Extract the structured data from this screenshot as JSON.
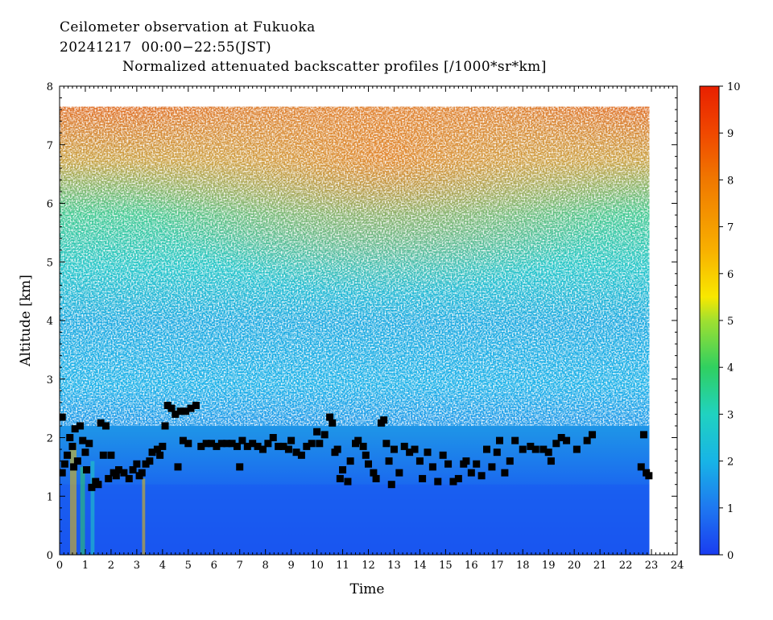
{
  "header": {
    "line1": "Ceilometer observation at Fukuoka",
    "line2": "20241217  00:00−22:55(JST)",
    "line3": "Normalized attenuated backscatter profiles [/1000*sr*km]"
  },
  "chart_data": {
    "type": "heatmap",
    "xlabel": "Time",
    "ylabel": "Altitude [km]",
    "xlim": [
      0,
      24
    ],
    "ylim": [
      0,
      8
    ],
    "x_ticks": [
      "0",
      "1",
      "2",
      "3",
      "4",
      "5",
      "6",
      "7",
      "8",
      "9",
      "10",
      "11",
      "12",
      "13",
      "14",
      "15",
      "16",
      "17",
      "18",
      "19",
      "20",
      "21",
      "22",
      "23",
      "24"
    ],
    "y_ticks": [
      "0",
      "1",
      "2",
      "3",
      "4",
      "5",
      "6",
      "7",
      "8"
    ],
    "data_time_range_hours": [
      0,
      22.92
    ],
    "data_max_altitude_km": 7.65,
    "colorbar": {
      "range": [
        0,
        10
      ],
      "ticks": [
        "0",
        "1",
        "2",
        "3",
        "4",
        "5",
        "6",
        "7",
        "8",
        "9",
        "10"
      ],
      "colors": [
        "#1a3cf0",
        "#1e78f0",
        "#18b4e6",
        "#20d2c0",
        "#30d060",
        "#a0e030",
        "#f8e800",
        "#f8b000",
        "#f07800",
        "#f04800",
        "#e82000"
      ]
    },
    "cloud_base_marks": {
      "marker": "black-square",
      "points": [
        [
          0.1,
          2.35
        ],
        [
          0.1,
          1.4
        ],
        [
          0.2,
          1.55
        ],
        [
          0.3,
          1.7
        ],
        [
          0.4,
          2.0
        ],
        [
          0.5,
          1.85
        ],
        [
          0.55,
          1.5
        ],
        [
          0.6,
          2.15
        ],
        [
          0.7,
          1.6
        ],
        [
          0.8,
          2.2
        ],
        [
          0.9,
          1.95
        ],
        [
          1.0,
          1.75
        ],
        [
          1.05,
          1.45
        ],
        [
          1.15,
          1.9
        ],
        [
          1.25,
          1.15
        ],
        [
          1.4,
          1.25
        ],
        [
          1.5,
          1.2
        ],
        [
          1.6,
          2.25
        ],
        [
          1.7,
          1.7
        ],
        [
          1.8,
          2.2
        ],
        [
          1.9,
          1.3
        ],
        [
          2.0,
          1.7
        ],
        [
          2.1,
          1.4
        ],
        [
          2.2,
          1.35
        ],
        [
          2.3,
          1.45
        ],
        [
          2.5,
          1.4
        ],
        [
          2.7,
          1.3
        ],
        [
          2.85,
          1.45
        ],
        [
          3.0,
          1.55
        ],
        [
          3.1,
          1.35
        ],
        [
          3.2,
          1.4
        ],
        [
          3.35,
          1.55
        ],
        [
          3.5,
          1.6
        ],
        [
          3.6,
          1.75
        ],
        [
          3.8,
          1.8
        ],
        [
          3.9,
          1.7
        ],
        [
          4.0,
          1.85
        ],
        [
          4.1,
          2.2
        ],
        [
          4.2,
          2.55
        ],
        [
          4.35,
          2.5
        ],
        [
          4.5,
          2.4
        ],
        [
          4.6,
          1.5
        ],
        [
          4.7,
          2.45
        ],
        [
          4.8,
          1.95
        ],
        [
          4.9,
          2.45
        ],
        [
          5.0,
          1.9
        ],
        [
          5.1,
          2.5
        ],
        [
          5.3,
          2.55
        ],
        [
          5.5,
          1.85
        ],
        [
          5.7,
          1.9
        ],
        [
          5.9,
          1.9
        ],
        [
          6.1,
          1.85
        ],
        [
          6.3,
          1.9
        ],
        [
          6.5,
          1.9
        ],
        [
          6.7,
          1.9
        ],
        [
          6.9,
          1.85
        ],
        [
          7.0,
          1.5
        ],
        [
          7.1,
          1.95
        ],
        [
          7.3,
          1.85
        ],
        [
          7.5,
          1.9
        ],
        [
          7.7,
          1.85
        ],
        [
          7.9,
          1.8
        ],
        [
          8.1,
          1.9
        ],
        [
          8.3,
          2.0
        ],
        [
          8.5,
          1.85
        ],
        [
          8.7,
          1.85
        ],
        [
          8.9,
          1.8
        ],
        [
          9.0,
          1.95
        ],
        [
          9.2,
          1.75
        ],
        [
          9.4,
          1.7
        ],
        [
          9.6,
          1.85
        ],
        [
          9.8,
          1.9
        ],
        [
          10.0,
          2.1
        ],
        [
          10.1,
          1.9
        ],
        [
          10.3,
          2.05
        ],
        [
          10.5,
          2.35
        ],
        [
          10.6,
          2.25
        ],
        [
          10.7,
          1.75
        ],
        [
          10.8,
          1.8
        ],
        [
          10.9,
          1.3
        ],
        [
          11.0,
          1.45
        ],
        [
          11.2,
          1.25
        ],
        [
          11.3,
          1.6
        ],
        [
          11.5,
          1.9
        ],
        [
          11.6,
          1.95
        ],
        [
          11.8,
          1.85
        ],
        [
          11.9,
          1.7
        ],
        [
          12.0,
          1.55
        ],
        [
          12.2,
          1.4
        ],
        [
          12.3,
          1.3
        ],
        [
          12.5,
          2.25
        ],
        [
          12.6,
          2.3
        ],
        [
          12.7,
          1.9
        ],
        [
          12.8,
          1.6
        ],
        [
          12.9,
          1.2
        ],
        [
          13.0,
          1.8
        ],
        [
          13.2,
          1.4
        ],
        [
          13.4,
          1.85
        ],
        [
          13.6,
          1.75
        ],
        [
          13.8,
          1.8
        ],
        [
          14.0,
          1.6
        ],
        [
          14.1,
          1.3
        ],
        [
          14.3,
          1.75
        ],
        [
          14.5,
          1.5
        ],
        [
          14.7,
          1.25
        ],
        [
          14.9,
          1.7
        ],
        [
          15.1,
          1.55
        ],
        [
          15.3,
          1.25
        ],
        [
          15.5,
          1.3
        ],
        [
          15.7,
          1.55
        ],
        [
          15.8,
          1.6
        ],
        [
          16.0,
          1.4
        ],
        [
          16.2,
          1.55
        ],
        [
          16.4,
          1.35
        ],
        [
          16.6,
          1.8
        ],
        [
          16.8,
          1.5
        ],
        [
          17.0,
          1.75
        ],
        [
          17.1,
          1.95
        ],
        [
          17.3,
          1.4
        ],
        [
          17.5,
          1.6
        ],
        [
          17.7,
          1.95
        ],
        [
          18.0,
          1.8
        ],
        [
          18.3,
          1.85
        ],
        [
          18.5,
          1.8
        ],
        [
          18.8,
          1.8
        ],
        [
          19.0,
          1.75
        ],
        [
          19.1,
          1.6
        ],
        [
          19.3,
          1.9
        ],
        [
          19.5,
          2.0
        ],
        [
          19.7,
          1.95
        ],
        [
          20.1,
          1.8
        ],
        [
          20.5,
          1.95
        ],
        [
          20.7,
          2.05
        ],
        [
          22.6,
          1.5
        ],
        [
          22.7,
          2.05
        ],
        [
          22.8,
          1.4
        ],
        [
          22.9,
          1.35
        ]
      ]
    }
  }
}
